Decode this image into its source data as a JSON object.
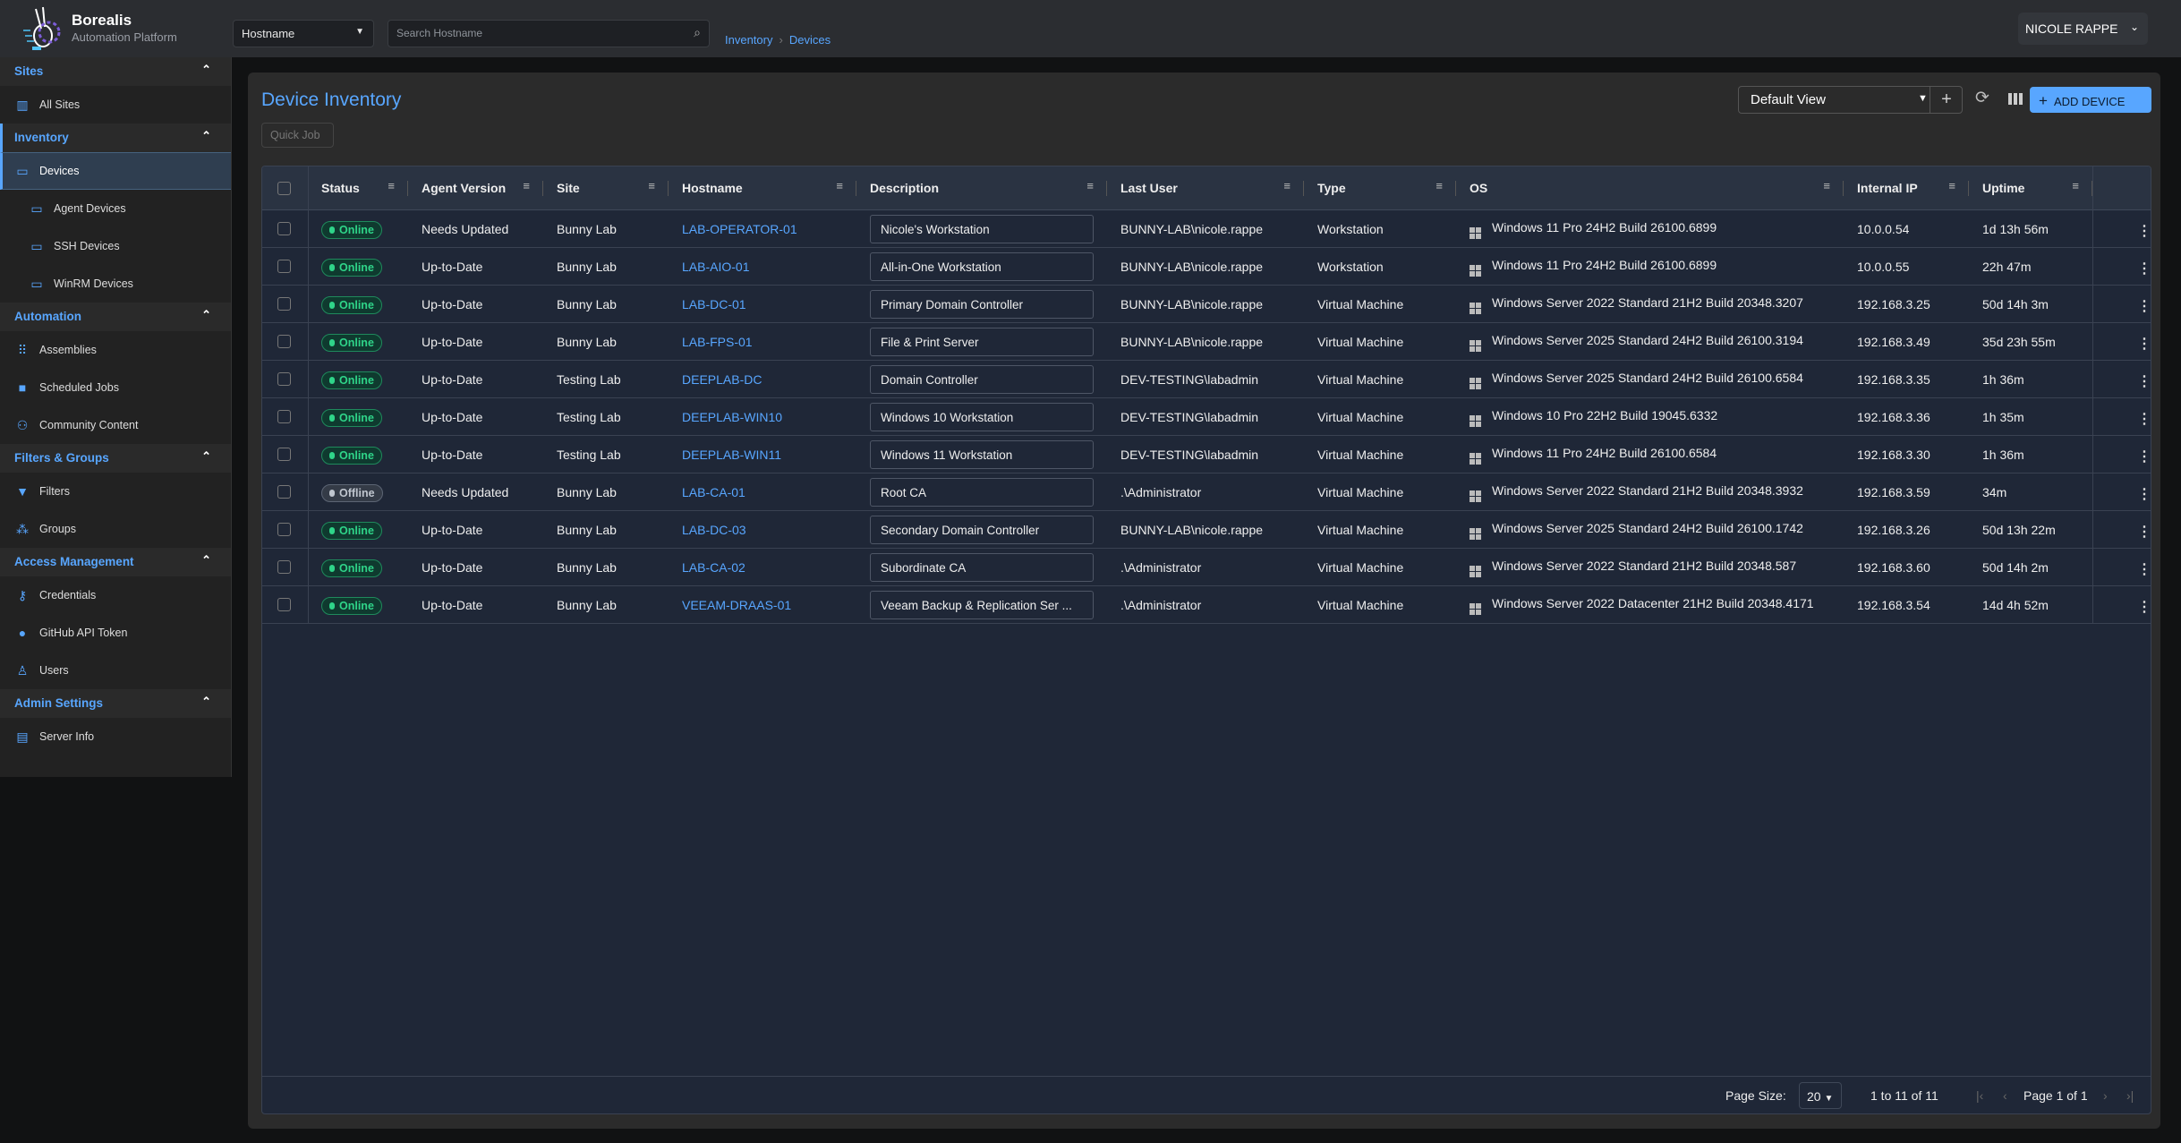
{
  "app": {
    "name": "Borealis",
    "subtitle": "Automation Platform"
  },
  "search": {
    "field": "Hostname",
    "placeholder": "Search Hostname"
  },
  "breadcrumb": [
    "Inventory",
    "Devices"
  ],
  "user": {
    "name": "NICOLE RAPPE"
  },
  "sidebar": [
    {
      "title": "Sites",
      "active": false,
      "items": [
        {
          "label": "All Sites",
          "icon": "building-icon"
        }
      ]
    },
    {
      "title": "Inventory",
      "active": true,
      "items": [
        {
          "label": "Devices",
          "icon": "devices-icon",
          "active": true
        },
        {
          "label": "Agent Devices",
          "icon": "devices-icon",
          "sub": true
        },
        {
          "label": "SSH Devices",
          "icon": "devices-icon",
          "sub": true
        },
        {
          "label": "WinRM Devices",
          "icon": "devices-icon",
          "sub": true
        }
      ]
    },
    {
      "title": "Automation",
      "items": [
        {
          "label": "Assemblies",
          "icon": "grid-icon"
        },
        {
          "label": "Scheduled Jobs",
          "icon": "briefcase-icon"
        },
        {
          "label": "Community Content",
          "icon": "people-icon"
        }
      ]
    },
    {
      "title": "Filters & Groups",
      "items": [
        {
          "label": "Filters",
          "icon": "funnel-icon"
        },
        {
          "label": "Groups",
          "icon": "groups-icon"
        }
      ]
    },
    {
      "title": "Access Management",
      "items": [
        {
          "label": "Credentials",
          "icon": "key-icon"
        },
        {
          "label": "GitHub API Token",
          "icon": "github-icon"
        },
        {
          "label": "Users",
          "icon": "user-icon"
        }
      ]
    },
    {
      "title": "Admin Settings",
      "items": [
        {
          "label": "Server Info",
          "icon": "server-icon"
        }
      ]
    }
  ],
  "page": {
    "title": "Device Inventory",
    "quick_job": "Quick Job",
    "view": "Default View",
    "add_device": "ADD DEVICE",
    "accent": "#58a6ff"
  },
  "table": {
    "columns": [
      "Status",
      "Agent Version",
      "Site",
      "Hostname",
      "Description",
      "Last User",
      "Type",
      "OS",
      "Internal IP",
      "Uptime"
    ],
    "rows": [
      [
        "Online",
        "Needs Updated",
        "Bunny Lab",
        "LAB-OPERATOR-01",
        "Nicole's Workstation",
        "BUNNY-LAB\\nicole.rappe",
        "Workstation",
        "Windows 11 Pro 24H2 Build 26100.6899",
        "10.0.0.54",
        "1d 13h 56m"
      ],
      [
        "Online",
        "Up-to-Date",
        "Bunny Lab",
        "LAB-AIO-01",
        "All-in-One Workstation",
        "BUNNY-LAB\\nicole.rappe",
        "Workstation",
        "Windows 11 Pro 24H2 Build 26100.6899",
        "10.0.0.55",
        "22h 47m"
      ],
      [
        "Online",
        "Up-to-Date",
        "Bunny Lab",
        "LAB-DC-01",
        "Primary Domain Controller",
        "BUNNY-LAB\\nicole.rappe",
        "Virtual Machine",
        "Windows Server 2022 Standard 21H2 Build 20348.3207",
        "192.168.3.25",
        "50d 14h 3m"
      ],
      [
        "Online",
        "Up-to-Date",
        "Bunny Lab",
        "LAB-FPS-01",
        "File & Print Server",
        "BUNNY-LAB\\nicole.rappe",
        "Virtual Machine",
        "Windows Server 2025 Standard 24H2 Build 26100.3194",
        "192.168.3.49",
        "35d 23h 55m"
      ],
      [
        "Online",
        "Up-to-Date",
        "Testing Lab",
        "DEEPLAB-DC",
        "Domain Controller",
        "DEV-TESTING\\labadmin",
        "Virtual Machine",
        "Windows Server 2025 Standard 24H2 Build 26100.6584",
        "192.168.3.35",
        "1h 36m"
      ],
      [
        "Online",
        "Up-to-Date",
        "Testing Lab",
        "DEEPLAB-WIN10",
        "Windows 10 Workstation",
        "DEV-TESTING\\labadmin",
        "Virtual Machine",
        "Windows 10 Pro 22H2 Build 19045.6332",
        "192.168.3.36",
        "1h 35m"
      ],
      [
        "Online",
        "Up-to-Date",
        "Testing Lab",
        "DEEPLAB-WIN11",
        "Windows 11 Workstation",
        "DEV-TESTING\\labadmin",
        "Virtual Machine",
        "Windows 11 Pro 24H2 Build 26100.6584",
        "192.168.3.30",
        "1h 36m"
      ],
      [
        "Offline",
        "Needs Updated",
        "Bunny Lab",
        "LAB-CA-01",
        "Root CA",
        ".\\Administrator",
        "Virtual Machine",
        "Windows Server 2022 Standard 21H2 Build 20348.3932",
        "192.168.3.59",
        "34m"
      ],
      [
        "Online",
        "Up-to-Date",
        "Bunny Lab",
        "LAB-DC-03",
        "Secondary Domain Controller",
        "BUNNY-LAB\\nicole.rappe",
        "Virtual Machine",
        "Windows Server 2025 Standard 24H2 Build 26100.1742",
        "192.168.3.26",
        "50d 13h 22m"
      ],
      [
        "Online",
        "Up-to-Date",
        "Bunny Lab",
        "LAB-CA-02",
        "Subordinate CA",
        ".\\Administrator",
        "Virtual Machine",
        "Windows Server 2022 Standard 21H2 Build 20348.587",
        "192.168.3.60",
        "50d 14h 2m"
      ],
      [
        "Online",
        "Up-to-Date",
        "Bunny Lab",
        "VEEAM-DRAAS-01",
        "Veeam Backup & Replication Ser ...",
        ".\\Administrator",
        "Virtual Machine",
        "Windows Server 2022 Datacenter 21H2 Build 20348.4171",
        "192.168.3.54",
        "14d 4h 52m"
      ]
    ]
  },
  "pagination": {
    "page_size_label": "Page Size:",
    "page_size": "20",
    "range": "1 to 11 of 11",
    "page": "Page 1 of 1"
  }
}
